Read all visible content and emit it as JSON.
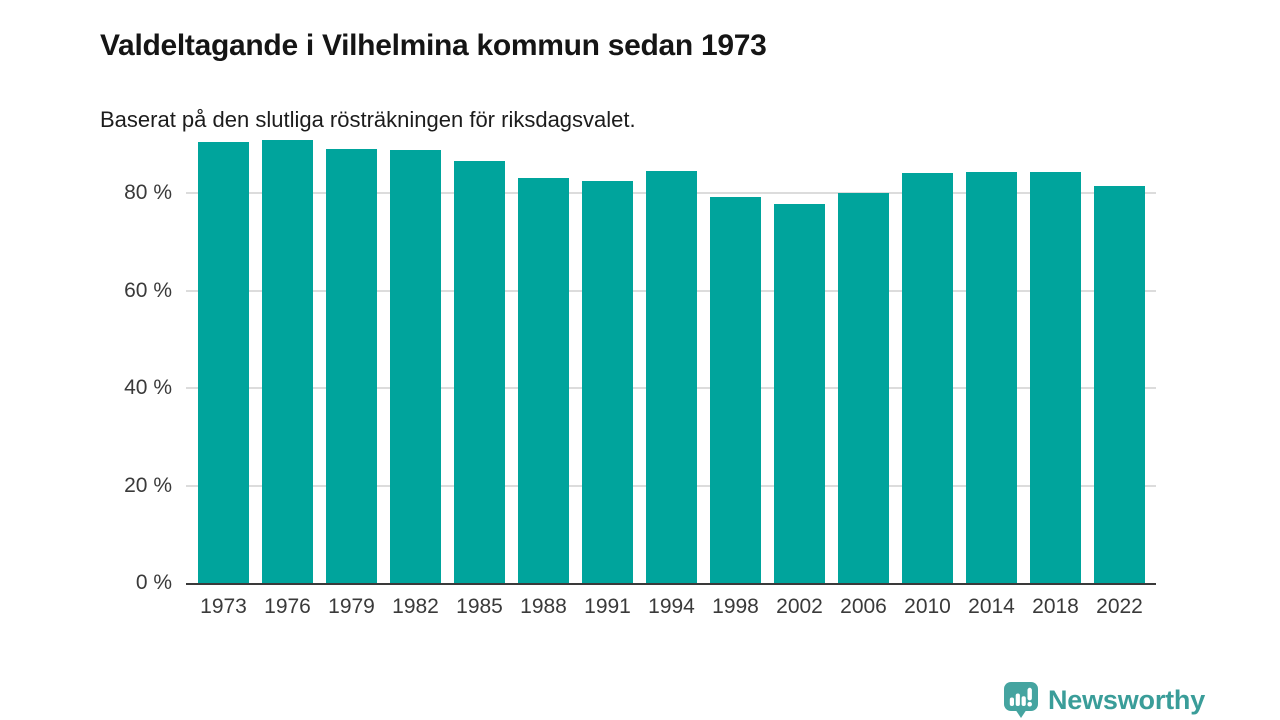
{
  "header": {
    "title": "Valdeltagande i Vilhelmina kommun sedan 1973",
    "subtitle": "Baserat på den slutliga rösträkningen för riksdagsvalet."
  },
  "chart_data": {
    "type": "bar",
    "title": "Valdeltagande i Vilhelmina kommun sedan 1973",
    "subtitle": "Baserat på den slutliga rösträkningen för riksdagsvalet.",
    "categories": [
      "1973",
      "1976",
      "1979",
      "1982",
      "1985",
      "1988",
      "1991",
      "1994",
      "1998",
      "2002",
      "2006",
      "2010",
      "2014",
      "2018",
      "2022"
    ],
    "values": [
      90.5,
      90.9,
      89.1,
      89.0,
      86.6,
      83.2,
      82.6,
      84.6,
      79.2,
      77.9,
      80.1,
      84.1,
      84.5,
      84.5,
      81.6
    ],
    "unit": "%",
    "xlabel": "",
    "ylabel": "",
    "ylim": [
      0,
      92
    ],
    "yticks": [
      0,
      20,
      40,
      60,
      80
    ],
    "ytick_labels": [
      "0 %",
      "20 %",
      "40 %",
      "60 %",
      "80 %"
    ],
    "grid": true,
    "legend": "none",
    "bar_color": "#00a49c",
    "gridline_color": "#dcdcdc",
    "axis_color": "#3a3a3a"
  },
  "footer": {
    "brand": "Newsworthy",
    "brand_color": "#3a9d99",
    "logo_icon": "newsworthy-speech-bubble-bar-chart-icon"
  }
}
